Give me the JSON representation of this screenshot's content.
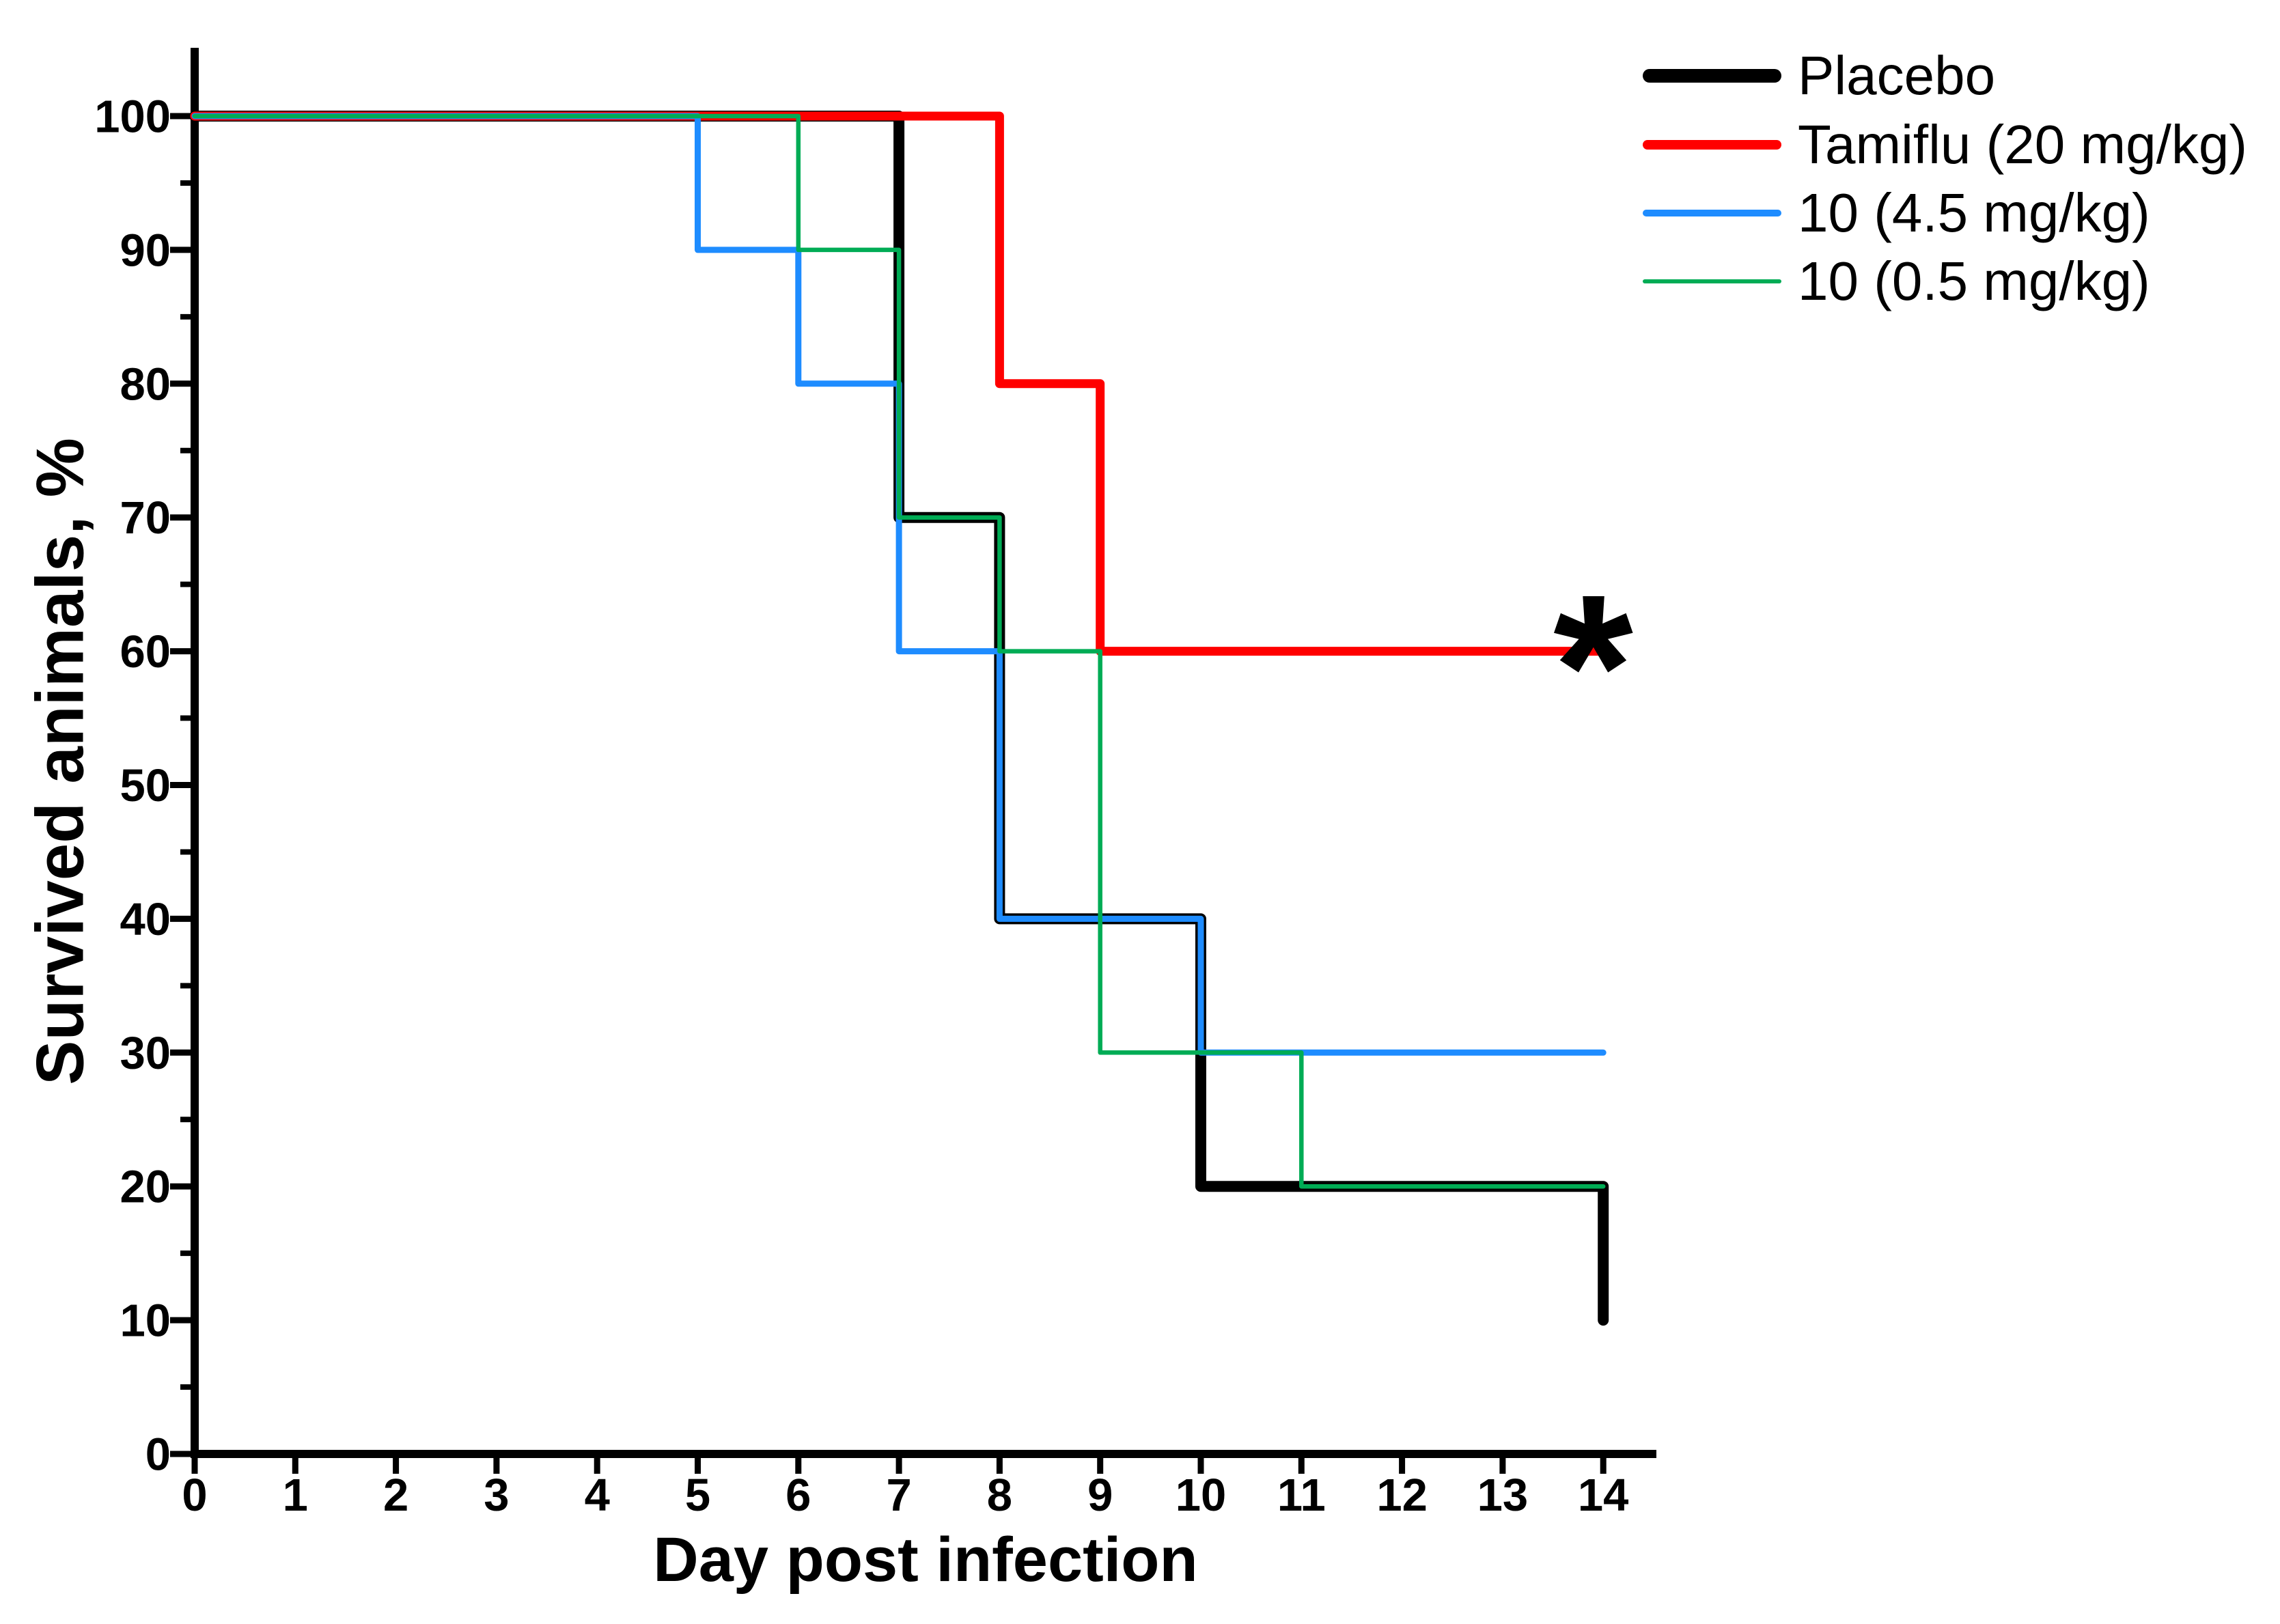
{
  "figure": {
    "background": "#FFFFFF",
    "axis_color": "#000000"
  },
  "chart_data": {
    "type": "line",
    "step": true,
    "title": "",
    "xlabel": "Day post infection",
    "ylabel": "Survived animals, %",
    "xlim": [
      0,
      14
    ],
    "ylim": [
      0,
      100
    ],
    "x_ticks": [
      0,
      1,
      2,
      3,
      4,
      5,
      6,
      7,
      8,
      9,
      10,
      11,
      12,
      13,
      14
    ],
    "y_ticks": [
      0,
      10,
      20,
      30,
      40,
      50,
      60,
      70,
      80,
      90,
      100
    ],
    "y_minor_ticks": [
      5,
      15,
      25,
      35,
      45,
      55,
      65,
      75,
      85,
      95
    ],
    "grid": false,
    "legend_position": "top-right",
    "series": [
      {
        "name": "Placebo",
        "color": "#000000",
        "line_width": 16,
        "legend_line_width": 20,
        "points": [
          [
            0,
            100
          ],
          [
            7,
            100
          ],
          [
            7,
            70
          ],
          [
            8,
            70
          ],
          [
            8,
            40
          ],
          [
            10,
            40
          ],
          [
            10,
            20
          ],
          [
            14,
            20
          ],
          [
            14,
            10
          ]
        ]
      },
      {
        "name": "Tamiflu (20 mg/kg)",
        "color": "#FF0000",
        "line_width": 13,
        "legend_line_width": 14,
        "points": [
          [
            0,
            100
          ],
          [
            8,
            100
          ],
          [
            8,
            80
          ],
          [
            9,
            80
          ],
          [
            9,
            60
          ],
          [
            14,
            60
          ]
        ]
      },
      {
        "name": "10 (4.5 mg/kg)",
        "color": "#1E8CFF",
        "line_width": 9,
        "legend_line_width": 10,
        "points": [
          [
            0,
            100
          ],
          [
            5,
            100
          ],
          [
            5,
            90
          ],
          [
            6,
            90
          ],
          [
            6,
            80
          ],
          [
            7,
            80
          ],
          [
            7,
            60
          ],
          [
            8,
            60
          ],
          [
            8,
            40
          ],
          [
            10,
            40
          ],
          [
            10,
            30
          ],
          [
            14,
            30
          ]
        ]
      },
      {
        "name": "10 (0.5 mg/kg)",
        "color": "#00AC55",
        "line_width": 6.5,
        "legend_line_width": 6,
        "points": [
          [
            0,
            100
          ],
          [
            6,
            100
          ],
          [
            6,
            90
          ],
          [
            7,
            90
          ],
          [
            7,
            70
          ],
          [
            8,
            70
          ],
          [
            8,
            60
          ],
          [
            9,
            60
          ],
          [
            9,
            30
          ],
          [
            11,
            30
          ],
          [
            11,
            20
          ],
          [
            14,
            20
          ]
        ]
      }
    ],
    "annotations": [
      {
        "text": "*",
        "x": 13.9,
        "y": 62,
        "color": "#000000"
      }
    ]
  }
}
